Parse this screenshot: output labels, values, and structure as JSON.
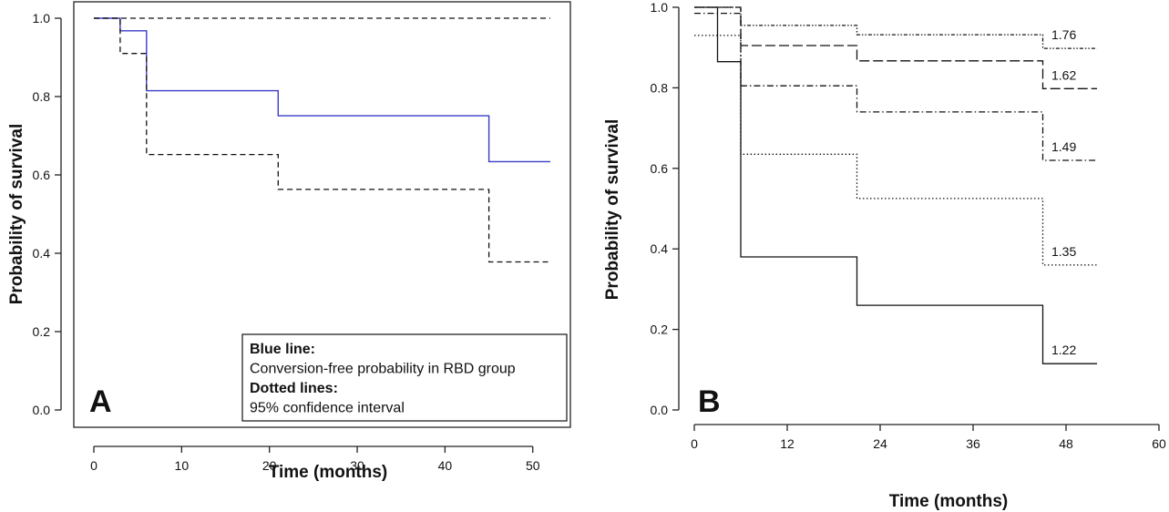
{
  "chart_data": [
    {
      "type": "line",
      "panel": "A",
      "xlabel": "Time (months)",
      "ylabel": "Probability of survival",
      "xlim": [
        0,
        52
      ],
      "ylim": [
        0,
        1
      ],
      "xticks": [
        0,
        10,
        20,
        30,
        40,
        50
      ],
      "yticks": [
        0.0,
        0.2,
        0.4,
        0.6,
        0.8,
        1.0
      ],
      "ytick_labels": [
        "0.0",
        "0.2",
        "0.4",
        "0.6",
        "0.8",
        "1.0"
      ],
      "series": [
        {
          "style": "solid",
          "color": "#3b3bc8",
          "x": [
            0,
            3,
            6,
            21,
            45,
            52
          ],
          "y": [
            1.0,
            0.968,
            0.815,
            0.751,
            0.634,
            0.634
          ]
        },
        {
          "style": "dashed",
          "color": "#111111",
          "x": [
            0,
            52
          ],
          "y": [
            1.0,
            1.0
          ]
        },
        {
          "style": "dashed",
          "color": "#111111",
          "x": [
            0,
            3,
            6,
            21,
            45,
            52
          ],
          "y": [
            1.0,
            0.91,
            0.652,
            0.563,
            0.378,
            0.378
          ]
        }
      ],
      "legend": {
        "position": "bottom-right",
        "lines": [
          {
            "text": "Blue line:",
            "bold": true
          },
          {
            "text": "Conversion-free probability in RBD group",
            "bold": false
          },
          {
            "text": "Dotted lines:",
            "bold": true
          },
          {
            "text": "95% confidence interval",
            "bold": false
          }
        ]
      },
      "box": true
    },
    {
      "type": "line",
      "panel": "B",
      "xlabel": "Time (months)",
      "ylabel": "Probability of survival",
      "xlim": [
        0,
        60
      ],
      "ylim": [
        0,
        1
      ],
      "xticks": [
        0,
        12,
        24,
        36,
        48,
        60
      ],
      "yticks": [
        0.0,
        0.2,
        0.4,
        0.6,
        0.8,
        1.0
      ],
      "ytick_labels": [
        "0.0",
        "0.2",
        "0.4",
        "0.6",
        "0.8",
        "1.0"
      ],
      "series": [
        {
          "name": "1.76",
          "style": "dashdot2",
          "x": [
            0,
            6,
            21,
            45,
            52
          ],
          "y": [
            1.0,
            0.955,
            0.932,
            0.898,
            0.898
          ]
        },
        {
          "name": "1.62",
          "style": "longdash",
          "x": [
            0,
            6,
            21,
            45,
            52
          ],
          "y": [
            1.0,
            0.905,
            0.867,
            0.798,
            0.798
          ]
        },
        {
          "name": "1.49",
          "style": "dashdot",
          "x": [
            0,
            6,
            21,
            45,
            52
          ],
          "y": [
            0.985,
            0.805,
            0.74,
            0.62,
            0.62
          ]
        },
        {
          "name": "1.35",
          "style": "dotted",
          "x": [
            0,
            6,
            21,
            45,
            52
          ],
          "y": [
            0.93,
            0.635,
            0.525,
            0.36,
            0.36
          ]
        },
        {
          "name": "1.22",
          "style": "solid",
          "x": [
            0,
            3,
            6,
            21,
            45,
            52
          ],
          "y": [
            1.0,
            0.865,
            0.38,
            0.26,
            0.115,
            0.115
          ]
        }
      ],
      "box": false
    }
  ]
}
